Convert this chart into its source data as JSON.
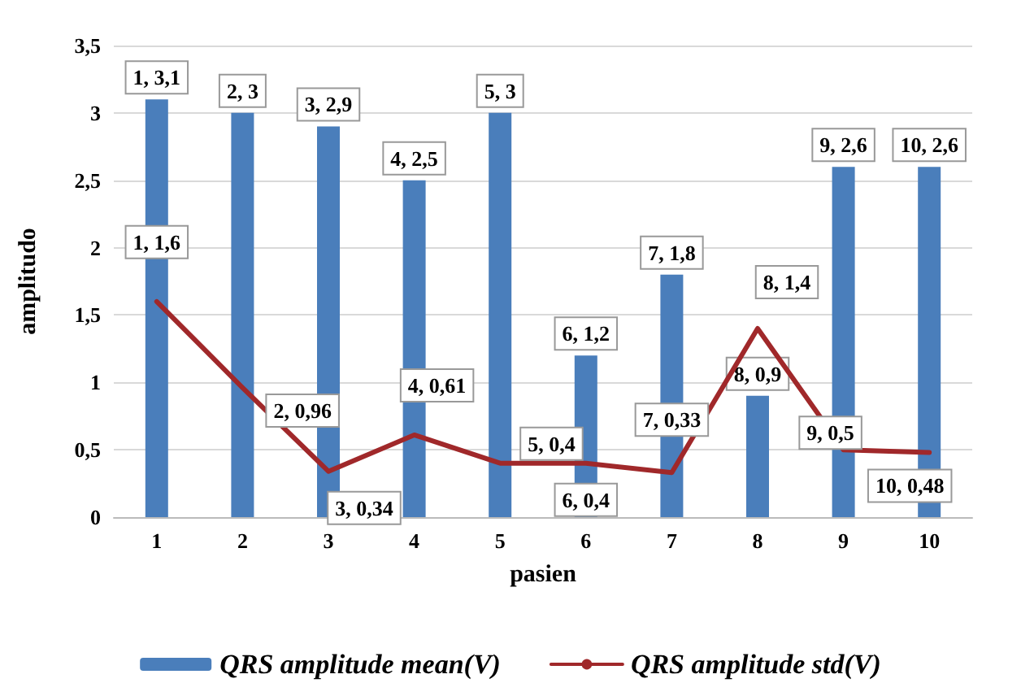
{
  "chart_data": {
    "type": "bar",
    "xlabel": "pasien",
    "ylabel": "amplitudo",
    "categories": [
      "1",
      "2",
      "3",
      "4",
      "5",
      "6",
      "7",
      "8",
      "9",
      "10"
    ],
    "series": [
      {
        "name": "QRS amplitude mean(V)",
        "color": "#4a7ebb",
        "values": [
          3.1,
          3,
          2.9,
          2.5,
          3,
          1.2,
          1.8,
          0.9,
          2.6,
          2.6
        ],
        "value_labels": [
          "1, 3,1",
          "2, 3",
          "3, 2,9",
          "4, 2,5",
          "5, 3",
          "6, 1,2",
          "7, 1,8",
          "8, 0,9",
          "9, 2,6",
          "10, 2,6"
        ]
      },
      {
        "name": "QRS amplitude std(V)",
        "type": "line",
        "color": "#a0282a",
        "values": [
          1.6,
          0.96,
          0.34,
          0.61,
          0.4,
          0.4,
          0.33,
          1.4,
          0.5,
          0.48
        ],
        "value_labels": [
          "1, 1,6",
          "2, 0,96",
          "3, 0,34",
          "4, 0,61",
          "5, 0,4",
          "6, 0,4",
          "7, 0,33",
          "8, 1,4",
          "9, 0,5",
          "10, 0,48"
        ]
      }
    ],
    "ylim": [
      0,
      3.5
    ],
    "yticks": [
      {
        "value": 0,
        "label": "0"
      },
      {
        "value": 0.5,
        "label": "0,5"
      },
      {
        "value": 1,
        "label": "1"
      },
      {
        "value": 1.5,
        "label": "1,5"
      },
      {
        "value": 2,
        "label": "2"
      },
      {
        "value": 2.5,
        "label": "2,5"
      },
      {
        "value": 3,
        "label": "3"
      },
      {
        "value": 3.5,
        "label": "3,5"
      }
    ],
    "grid": "y",
    "legend": "bottom",
    "marker": "none",
    "line_style": "solid"
  }
}
